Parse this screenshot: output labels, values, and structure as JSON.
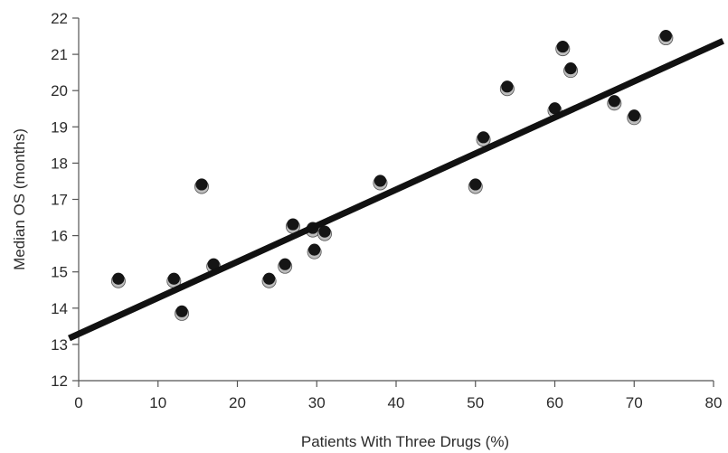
{
  "chart_data": {
    "type": "scatter",
    "title": "",
    "xlabel": "Patients With Three Drugs (%)",
    "ylabel": "Median OS (months)",
    "xlim": [
      0,
      80
    ],
    "ylim": [
      12,
      22
    ],
    "xticks": [
      0,
      10,
      20,
      30,
      40,
      50,
      60,
      70,
      80
    ],
    "yticks": [
      12,
      13,
      14,
      15,
      16,
      17,
      18,
      19,
      20,
      21,
      22
    ],
    "grid": false,
    "legend": "none",
    "series": [
      {
        "points": [
          {
            "x": 5,
            "y": 14.8
          },
          {
            "x": 12,
            "y": 14.8
          },
          {
            "x": 13,
            "y": 13.9
          },
          {
            "x": 15.5,
            "y": 17.4
          },
          {
            "x": 17,
            "y": 15.2
          },
          {
            "x": 24,
            "y": 14.8
          },
          {
            "x": 26,
            "y": 15.2
          },
          {
            "x": 27,
            "y": 16.3
          },
          {
            "x": 29.5,
            "y": 16.2
          },
          {
            "x": 29.7,
            "y": 15.6
          },
          {
            "x": 31,
            "y": 16.1
          },
          {
            "x": 38,
            "y": 17.5
          },
          {
            "x": 50,
            "y": 17.4
          },
          {
            "x": 51,
            "y": 18.7
          },
          {
            "x": 54,
            "y": 20.1
          },
          {
            "x": 60,
            "y": 19.5
          },
          {
            "x": 61,
            "y": 21.2
          },
          {
            "x": 62,
            "y": 20.6
          },
          {
            "x": 67.5,
            "y": 19.7
          },
          {
            "x": 70,
            "y": 19.3
          },
          {
            "x": 74,
            "y": 21.5
          }
        ]
      }
    ],
    "regression_line": {
      "x": [
        -1.2,
        81.2
      ],
      "y": [
        13.17,
        21.37
      ]
    },
    "colors": {
      "point_fill": "#151515",
      "point_highlight": "#bdbdbd",
      "line": "#111111",
      "axis": "#555555",
      "text": "#2b2b2b"
    }
  }
}
